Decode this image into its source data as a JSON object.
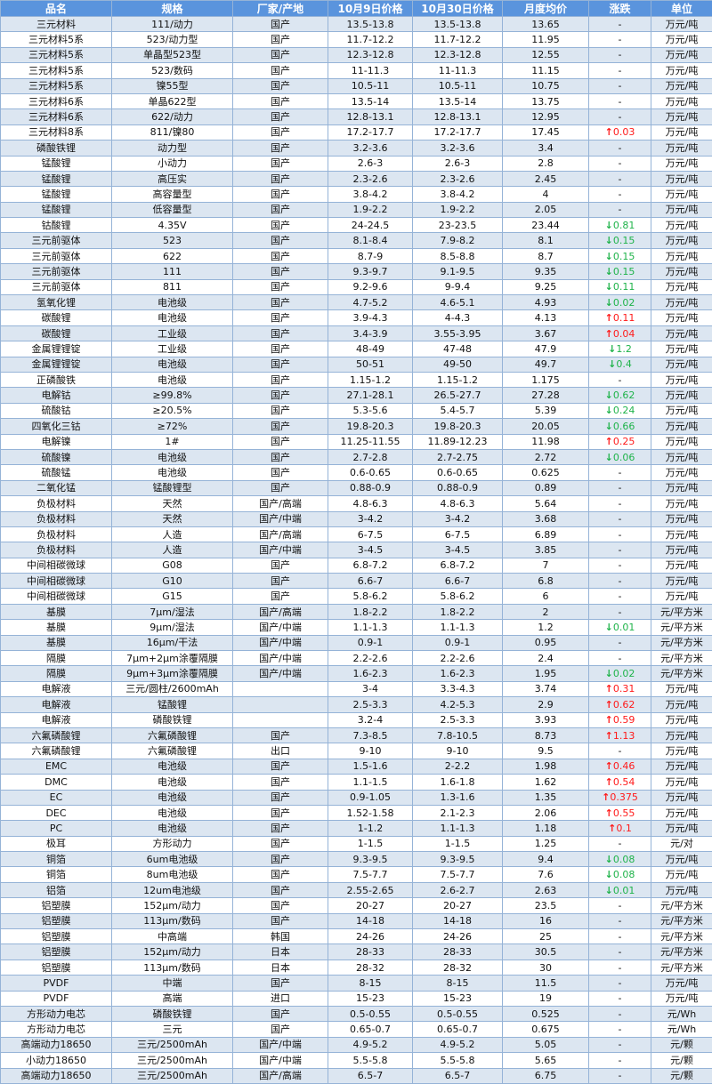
{
  "colors": {
    "header_bg": "#5a94dd",
    "row_alt": "#dce6f1",
    "border": "#95b3d7",
    "up": "#ff1a1a",
    "down": "#1fb34a"
  },
  "headers": [
    "品名",
    "规格",
    "厂家/产地",
    "10月9日价格",
    "10月30日价格",
    "月度均价",
    "涨跌",
    "单位"
  ],
  "rows": [
    [
      "三元材料",
      "111/动力",
      "国产",
      "13.5-13.8",
      "13.5-13.8",
      "13.65",
      null,
      "万元/吨"
    ],
    [
      "三元材料5系",
      "523/动力型",
      "国产",
      "11.7-12.2",
      "11.7-12.2",
      "11.95",
      null,
      "万元/吨"
    ],
    [
      "三元材料5系",
      "单晶型523型",
      "国产",
      "12.3-12.8",
      "12.3-12.8",
      "12.55",
      null,
      "万元/吨"
    ],
    [
      "三元材料5系",
      "523/数码",
      "国产",
      "11-11.3",
      "11-11.3",
      "11.15",
      null,
      "万元/吨"
    ],
    [
      "三元材料5系",
      "镍55型",
      "国产",
      "10.5-11",
      "10.5-11",
      "10.75",
      null,
      "万元/吨"
    ],
    [
      "三元材料6系",
      "单晶622型",
      "国产",
      "13.5-14",
      "13.5-14",
      "13.75",
      null,
      "万元/吨"
    ],
    [
      "三元材料6系",
      "622/动力",
      "国产",
      "12.8-13.1",
      "12.8-13.1",
      "12.95",
      null,
      "万元/吨"
    ],
    [
      "三元材料8系",
      "811/镍80",
      "国产",
      "17.2-17.7",
      "17.2-17.7",
      "17.45",
      {
        "dir": "up",
        "value": "0.03"
      },
      "万元/吨"
    ],
    [
      "磷酸铁锂",
      "动力型",
      "国产",
      "3.2-3.6",
      "3.2-3.6",
      "3.4",
      null,
      "万元/吨"
    ],
    [
      "锰酸锂",
      "小动力",
      "国产",
      "2.6-3",
      "2.6-3",
      "2.8",
      null,
      "万元/吨"
    ],
    [
      "锰酸锂",
      "高压实",
      "国产",
      "2.3-2.6",
      "2.3-2.6",
      "2.45",
      null,
      "万元/吨"
    ],
    [
      "锰酸锂",
      "高容量型",
      "国产",
      "3.8-4.2",
      "3.8-4.2",
      "4",
      null,
      "万元/吨"
    ],
    [
      "锰酸锂",
      "低容量型",
      "国产",
      "1.9-2.2",
      "1.9-2.2",
      "2.05",
      null,
      "万元/吨"
    ],
    [
      "钴酸锂",
      "4.35V",
      "国产",
      "24-24.5",
      "23-23.5",
      "23.44",
      {
        "dir": "down",
        "value": "0.81"
      },
      "万元/吨"
    ],
    [
      "三元前驱体",
      "523",
      "国产",
      "8.1-8.4",
      "7.9-8.2",
      "8.1",
      {
        "dir": "down",
        "value": "0.15"
      },
      "万元/吨"
    ],
    [
      "三元前驱体",
      "622",
      "国产",
      "8.7-9",
      "8.5-8.8",
      "8.7",
      {
        "dir": "down",
        "value": "0.15"
      },
      "万元/吨"
    ],
    [
      "三元前驱体",
      "111",
      "国产",
      "9.3-9.7",
      "9.1-9.5",
      "9.35",
      {
        "dir": "down",
        "value": "0.15"
      },
      "万元/吨"
    ],
    [
      "三元前驱体",
      "811",
      "国产",
      "9.2-9.6",
      "9-9.4",
      "9.25",
      {
        "dir": "down",
        "value": "0.11"
      },
      "万元/吨"
    ],
    [
      "氢氧化锂",
      "电池级",
      "国产",
      "4.7-5.2",
      "4.6-5.1",
      "4.93",
      {
        "dir": "down",
        "value": "0.02"
      },
      "万元/吨"
    ],
    [
      "碳酸锂",
      "电池级",
      "国产",
      "3.9-4.3",
      "4-4.3",
      "4.13",
      {
        "dir": "up",
        "value": "0.11"
      },
      "万元/吨"
    ],
    [
      "碳酸锂",
      "工业级",
      "国产",
      "3.4-3.9",
      "3.55-3.95",
      "3.67",
      {
        "dir": "up",
        "value": "0.04"
      },
      "万元/吨"
    ],
    [
      "金属锂锂锭",
      "工业级",
      "国产",
      "48-49",
      "47-48",
      "47.9",
      {
        "dir": "down",
        "value": "1.2"
      },
      "万元/吨"
    ],
    [
      "金属锂锂锭",
      "电池级",
      "国产",
      "50-51",
      "49-50",
      "49.7",
      {
        "dir": "down",
        "value": "0.4"
      },
      "万元/吨"
    ],
    [
      "正磷酸铁",
      "电池级",
      "国产",
      "1.15-1.2",
      "1.15-1.2",
      "1.175",
      null,
      "万元/吨"
    ],
    [
      "电解钴",
      "≥99.8%",
      "国产",
      "27.1-28.1",
      "26.5-27.7",
      "27.28",
      {
        "dir": "down",
        "value": "0.62"
      },
      "万元/吨"
    ],
    [
      "硫酸钴",
      "≥20.5%",
      "国产",
      "5.3-5.6",
      "5.4-5.7",
      "5.39",
      {
        "dir": "down",
        "value": "0.24"
      },
      "万元/吨"
    ],
    [
      "四氧化三钴",
      "≥72%",
      "国产",
      "19.8-20.3",
      "19.8-20.3",
      "20.05",
      {
        "dir": "down",
        "value": "0.66"
      },
      "万元/吨"
    ],
    [
      "电解镍",
      "1#",
      "国产",
      "11.25-11.55",
      "11.89-12.23",
      "11.98",
      {
        "dir": "up",
        "value": "0.25"
      },
      "万元/吨"
    ],
    [
      "硫酸镍",
      "电池级",
      "国产",
      "2.7-2.8",
      "2.7-2.75",
      "2.72",
      {
        "dir": "down",
        "value": "0.06"
      },
      "万元/吨"
    ],
    [
      "硫酸锰",
      "电池级",
      "国产",
      "0.6-0.65",
      "0.6-0.65",
      "0.625",
      null,
      "万元/吨"
    ],
    [
      "二氧化锰",
      "锰酸锂型",
      "国产",
      "0.88-0.9",
      "0.88-0.9",
      "0.89",
      null,
      "万元/吨"
    ],
    [
      "负极材料",
      "天然",
      "国产/高端",
      "4.8-6.3",
      "4.8-6.3",
      "5.64",
      null,
      "万元/吨"
    ],
    [
      "负极材料",
      "天然",
      "国产/中端",
      "3-4.2",
      "3-4.2",
      "3.68",
      null,
      "万元/吨"
    ],
    [
      "负极材料",
      "人造",
      "国产/高端",
      "6-7.5",
      "6-7.5",
      "6.89",
      null,
      "万元/吨"
    ],
    [
      "负极材料",
      "人造",
      "国产/中端",
      "3-4.5",
      "3-4.5",
      "3.85",
      null,
      "万元/吨"
    ],
    [
      "中间相碳微球",
      "G08",
      "国产",
      "6.8-7.2",
      "6.8-7.2",
      "7",
      null,
      "万元/吨"
    ],
    [
      "中间相碳微球",
      "G10",
      "国产",
      "6.6-7",
      "6.6-7",
      "6.8",
      null,
      "万元/吨"
    ],
    [
      "中间相碳微球",
      "G15",
      "国产",
      "5.8-6.2",
      "5.8-6.2",
      "6",
      null,
      "万元/吨"
    ],
    [
      "基膜",
      "7μm/湿法",
      "国产/高端",
      "1.8-2.2",
      "1.8-2.2",
      "2",
      null,
      "元/平方米"
    ],
    [
      "基膜",
      "9μm/湿法",
      "国产/中端",
      "1.1-1.3",
      "1.1-1.3",
      "1.2",
      {
        "dir": "down",
        "value": "0.01"
      },
      "元/平方米"
    ],
    [
      "基膜",
      "16μm/干法",
      "国产/中端",
      "0.9-1",
      "0.9-1",
      "0.95",
      null,
      "元/平方米"
    ],
    [
      "隔膜",
      "7μm+2μm涂覆隔膜",
      "国产/中端",
      "2.2-2.6",
      "2.2-2.6",
      "2.4",
      null,
      "元/平方米"
    ],
    [
      "隔膜",
      "9μm+3μm涂覆隔膜",
      "国产/中端",
      "1.6-2.3",
      "1.6-2.3",
      "1.95",
      {
        "dir": "down",
        "value": "0.02"
      },
      "元/平方米"
    ],
    [
      "电解液",
      "三元/圆柱/2600mAh",
      "",
      "3-4",
      "3.3-4.3",
      "3.74",
      {
        "dir": "up",
        "value": "0.31"
      },
      "万元/吨"
    ],
    [
      "电解液",
      "锰酸锂",
      "",
      "2.5-3.3",
      "4.2-5.3",
      "2.9",
      {
        "dir": "up",
        "value": "0.62"
      },
      "万元/吨"
    ],
    [
      "电解液",
      "磷酸铁锂",
      "",
      "3.2-4",
      "2.5-3.3",
      "3.93",
      {
        "dir": "up",
        "value": "0.59"
      },
      "万元/吨"
    ],
    [
      "六氟磷酸锂",
      "六氟磷酸锂",
      "国产",
      "7.3-8.5",
      "7.8-10.5",
      "8.73",
      {
        "dir": "up",
        "value": "1.13"
      },
      "万元/吨"
    ],
    [
      "六氟磷酸锂",
      "六氟磷酸锂",
      "出口",
      "9-10",
      "9-10",
      "9.5",
      null,
      "万元/吨"
    ],
    [
      "EMC",
      "电池级",
      "国产",
      "1.5-1.6",
      "2-2.2",
      "1.98",
      {
        "dir": "up",
        "value": "0.46"
      },
      "万元/吨"
    ],
    [
      "DMC",
      "电池级",
      "国产",
      "1.1-1.5",
      "1.6-1.8",
      "1.62",
      {
        "dir": "up",
        "value": "0.54"
      },
      "万元/吨"
    ],
    [
      "EC",
      "电池级",
      "国产",
      "0.9-1.05",
      "1.3-1.6",
      "1.35",
      {
        "dir": "up",
        "value": "0.375"
      },
      "万元/吨"
    ],
    [
      "DEC",
      "电池级",
      "国产",
      "1.52-1.58",
      "2.1-2.3",
      "2.06",
      {
        "dir": "up",
        "value": "0.55"
      },
      "万元/吨"
    ],
    [
      "PC",
      "电池级",
      "国产",
      "1-1.2",
      "1.1-1.3",
      "1.18",
      {
        "dir": "up",
        "value": "0.1"
      },
      "万元/吨"
    ],
    [
      "极耳",
      "方形动力",
      "国产",
      "1-1.5",
      "1-1.5",
      "1.25",
      null,
      "元/对"
    ],
    [
      "铜箔",
      "6um电池级",
      "国产",
      "9.3-9.5",
      "9.3-9.5",
      "9.4",
      {
        "dir": "down",
        "value": "0.08"
      },
      "万元/吨"
    ],
    [
      "铜箔",
      "8um电池级",
      "国产",
      "7.5-7.7",
      "7.5-7.7",
      "7.6",
      {
        "dir": "down",
        "value": "0.08"
      },
      "万元/吨"
    ],
    [
      "铝箔",
      "12um电池级",
      "国产",
      "2.55-2.65",
      "2.6-2.7",
      "2.63",
      {
        "dir": "down",
        "value": "0.01"
      },
      "万元/吨"
    ],
    [
      "铝塑膜",
      "152μm/动力",
      "国产",
      "20-27",
      "20-27",
      "23.5",
      null,
      "元/平方米"
    ],
    [
      "铝塑膜",
      "113μm/数码",
      "国产",
      "14-18",
      "14-18",
      "16",
      null,
      "元/平方米"
    ],
    [
      "铝塑膜",
      "中高端",
      "韩国",
      "24-26",
      "24-26",
      "25",
      null,
      "元/平方米"
    ],
    [
      "铝塑膜",
      "152μm/动力",
      "日本",
      "28-33",
      "28-33",
      "30.5",
      null,
      "元/平方米"
    ],
    [
      "铝塑膜",
      "113μm/数码",
      "日本",
      "28-32",
      "28-32",
      "30",
      null,
      "元/平方米"
    ],
    [
      "PVDF",
      "中端",
      "国产",
      "8-15",
      "8-15",
      "11.5",
      null,
      "万元/吨"
    ],
    [
      "PVDF",
      "高端",
      "进口",
      "15-23",
      "15-23",
      "19",
      null,
      "万元/吨"
    ],
    [
      "方形动力电芯",
      "磷酸铁锂",
      "国产",
      "0.5-0.55",
      "0.5-0.55",
      "0.525",
      null,
      "元/Wh"
    ],
    [
      "方形动力电芯",
      "三元",
      "国产",
      "0.65-0.7",
      "0.65-0.7",
      "0.675",
      null,
      "元/Wh"
    ],
    [
      "高端动力18650",
      "三元/2500mAh",
      "国产/中端",
      "4.9-5.2",
      "4.9-5.2",
      "5.05",
      null,
      "元/颗"
    ],
    [
      "小动力18650",
      "三元/2500mAh",
      "国产/中端",
      "5.5-5.8",
      "5.5-5.8",
      "5.65",
      null,
      "元/颗"
    ],
    [
      "高端动力18650",
      "三元/2500mAh",
      "国产/高端",
      "6.5-7",
      "6.5-7",
      "6.75",
      null,
      "元/颗"
    ]
  ],
  "no_change_text": "-",
  "arrows": {
    "up": "↑",
    "down": "↓"
  }
}
